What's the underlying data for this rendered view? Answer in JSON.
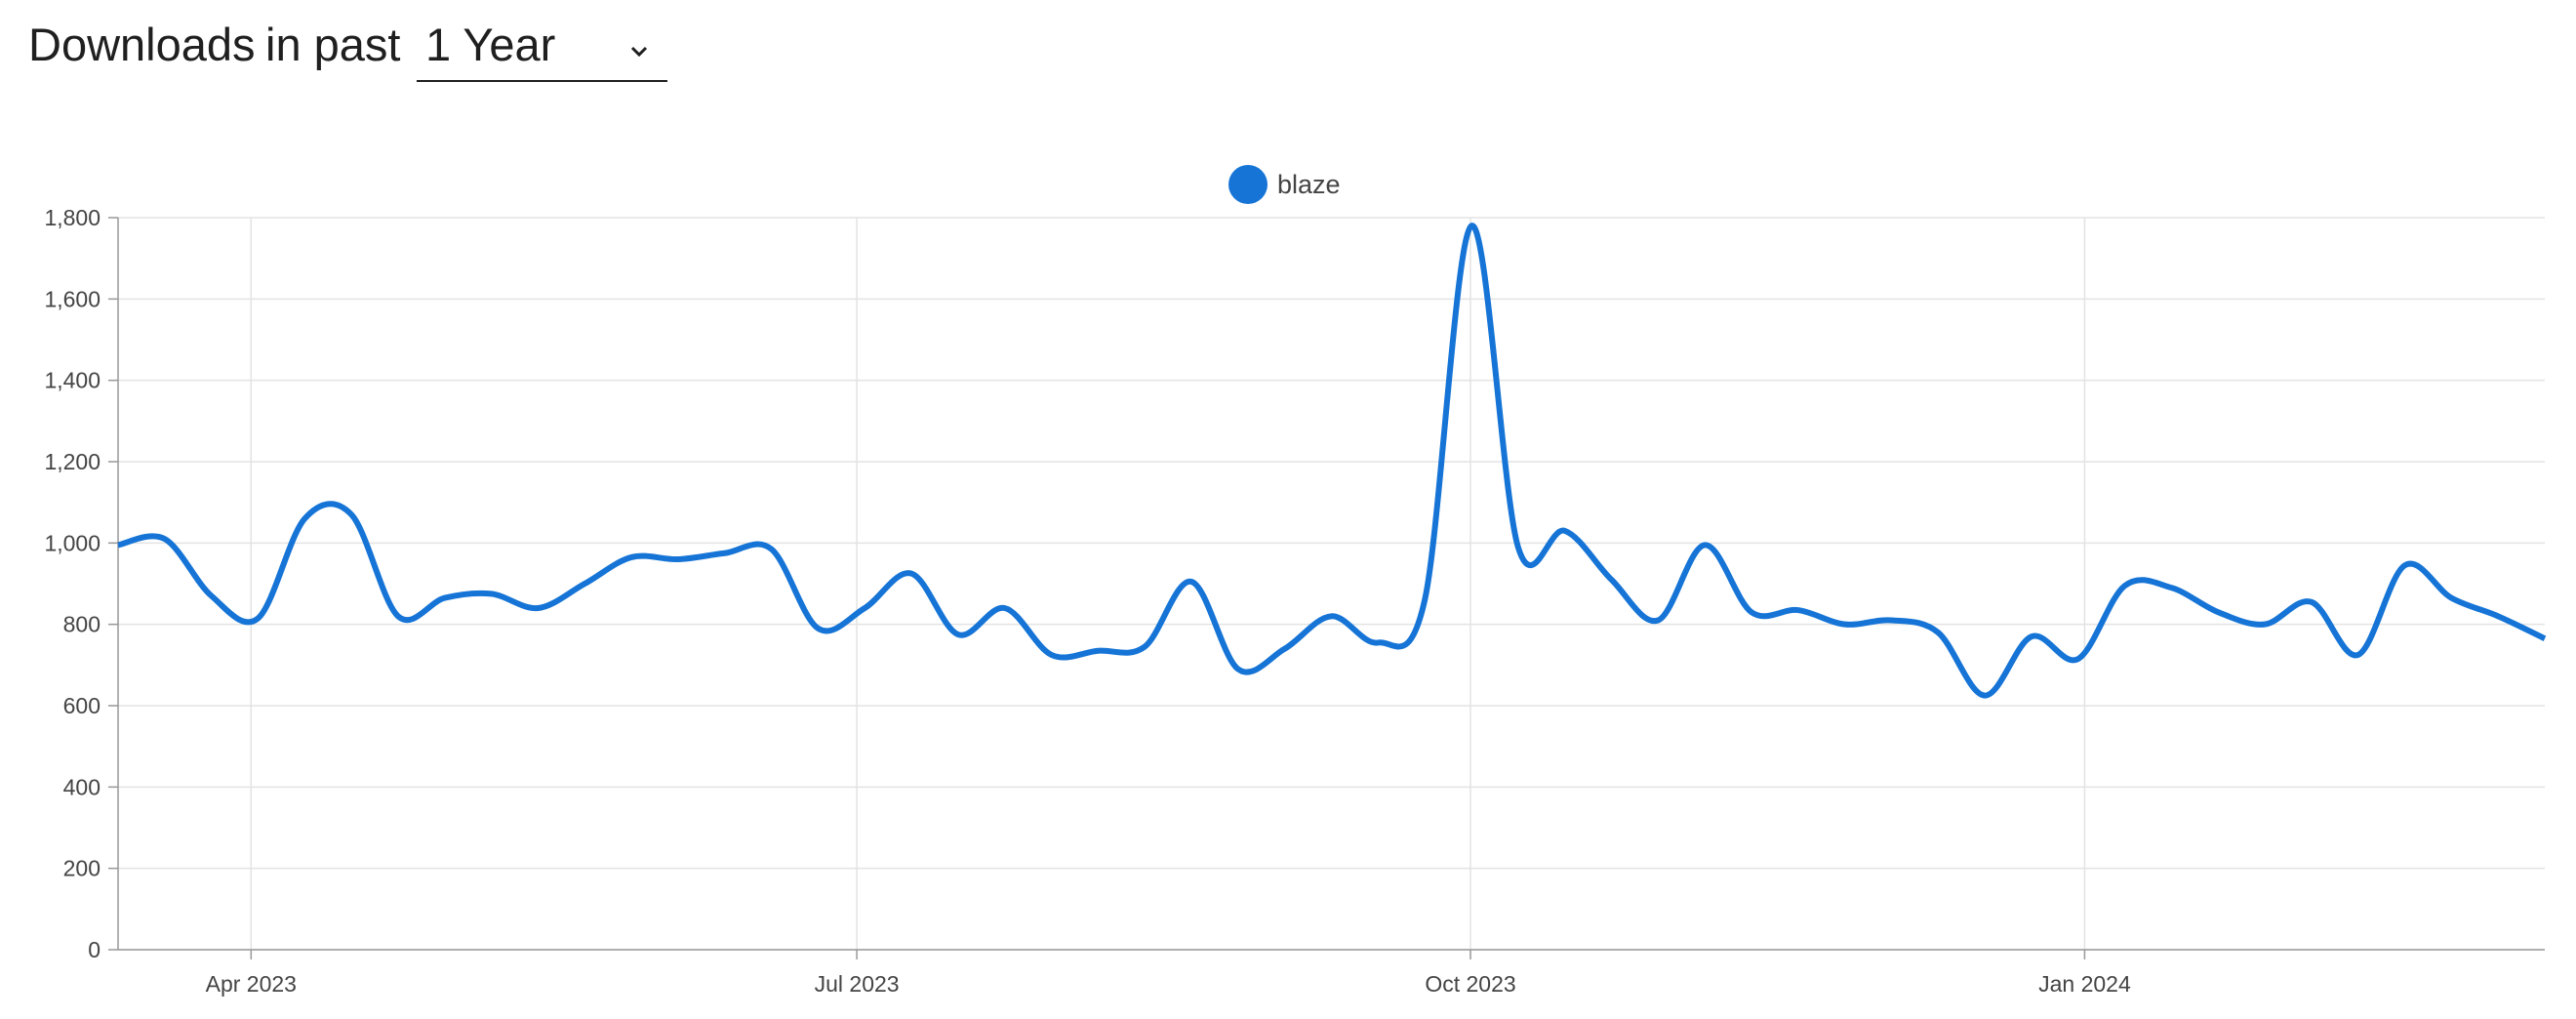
{
  "header": {
    "title": "Downloads",
    "subtitle": "in past",
    "select": "1 Year"
  },
  "chart_data": {
    "type": "line",
    "categories": [
      null,
      null,
      null,
      null,
      null,
      null,
      null,
      null,
      null,
      null,
      null,
      null,
      null,
      null,
      null,
      null,
      null,
      null,
      null,
      null,
      null,
      null,
      null,
      null,
      null,
      null,
      null,
      null,
      null,
      null,
      null,
      null,
      null,
      null,
      null,
      null,
      null,
      null,
      null,
      null,
      null,
      null,
      null,
      null,
      null,
      null,
      null,
      null,
      null,
      null,
      null,
      null,
      null
    ],
    "series": [
      {
        "name": "blaze",
        "color": "#1574d6",
        "values": [
          995,
          1010,
          870,
          815,
          1060,
          1070,
          820,
          865,
          875,
          840,
          900,
          965,
          960,
          975,
          985,
          790,
          840,
          925,
          775,
          840,
          725,
          735,
          745,
          905,
          690,
          740,
          820,
          755,
          860,
          1780,
          990,
          1030,
          910,
          810,
          995,
          830,
          835,
          800,
          810,
          780,
          625,
          770,
          715,
          895,
          890,
          830,
          800,
          855,
          725,
          945,
          865,
          820,
          765
        ]
      }
    ],
    "ylim": [
      0,
      1800
    ],
    "yticks": [
      0,
      200,
      400,
      600,
      800,
      {
        "value": 1000,
        "label": "1,000"
      },
      {
        "value": 1200,
        "label": "1,200"
      },
      {
        "value": 1400,
        "label": "1,400"
      },
      {
        "value": 1600,
        "label": "1,600"
      },
      {
        "value": 1800,
        "label": "1,800"
      }
    ],
    "xticks": [
      {
        "value": 2.85,
        "label": "Apr 2023"
      },
      {
        "value": 15.83,
        "label": "Jul 2023"
      },
      {
        "value": 28.98,
        "label": "Oct 2023"
      },
      {
        "value": 42.14,
        "label": "Jan 2024"
      }
    ],
    "grid": true,
    "legend": "top"
  }
}
